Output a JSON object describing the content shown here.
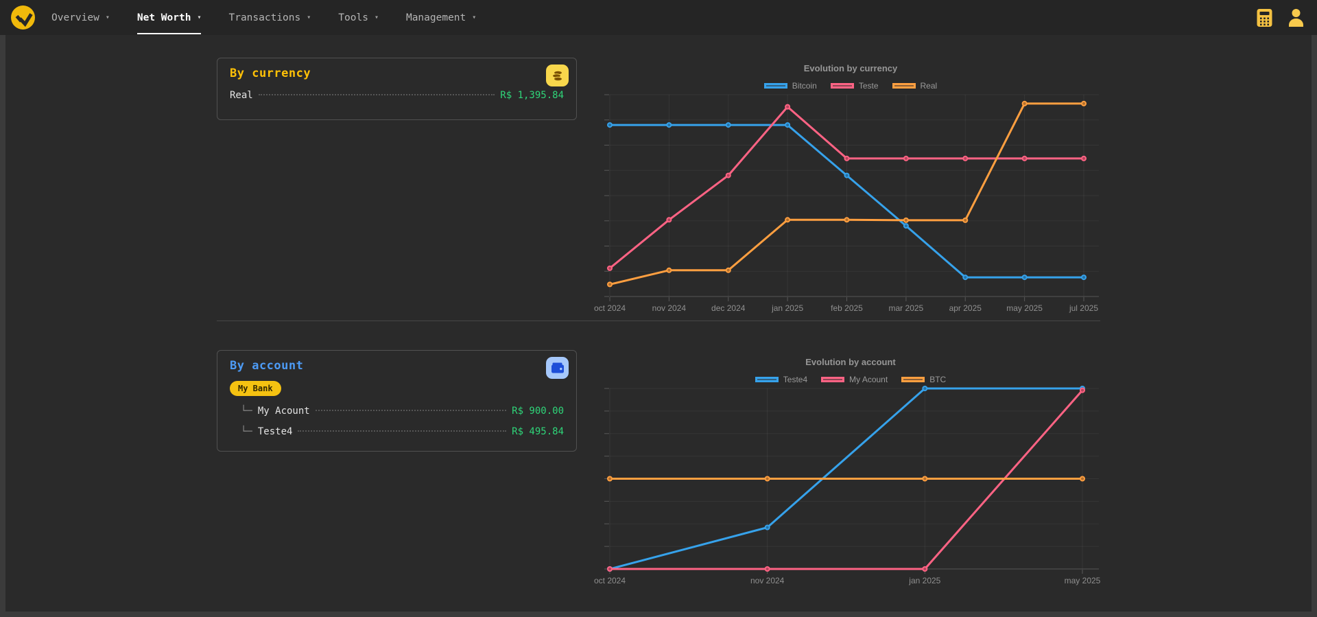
{
  "navbar": {
    "caret": "▾",
    "items": [
      {
        "label": "Overview",
        "active": false
      },
      {
        "label": "Net Worth",
        "active": true
      },
      {
        "label": "Transactions",
        "active": false
      },
      {
        "label": "Tools",
        "active": false
      },
      {
        "label": "Management",
        "active": false
      }
    ],
    "right_icons": [
      "calculator-icon",
      "user-icon"
    ],
    "logo_icon": "app-logo"
  },
  "cards": {
    "by_currency": {
      "title": "By currency",
      "icon": "coins-icon",
      "rows": [
        {
          "label": "Real",
          "value": "R$ 1,395.84"
        }
      ]
    },
    "by_account": {
      "title": "By account",
      "icon": "wallet-icon",
      "badge": "My Bank",
      "rows": [
        {
          "prefix": "└─",
          "label": "My Acount",
          "value": "R$ 900.00"
        },
        {
          "prefix": "└─",
          "label": "Teste4",
          "value": "R$ 495.84"
        }
      ]
    }
  },
  "colors": {
    "accent_yellow": "#F0B90B",
    "heading_yellow": "#FFC107",
    "heading_blue": "#4D9BF5",
    "value_green": "#2FD579",
    "chart_blue": "#36A2EB",
    "chart_pink": "#FF6384",
    "chart_orange": "#FF9F40"
  },
  "chart_data": [
    {
      "type": "line",
      "title": "Evolution by currency",
      "categories": [
        "oct 2024",
        "nov 2024",
        "dec 2024",
        "jan 2025",
        "feb 2025",
        "mar 2025",
        "apr 2025",
        "may 2025",
        "jul 2025"
      ],
      "unit": "percent_of_plot_height",
      "y_axis_note": "no y-axis tick labels visible; values estimated as % of plot height (0 = bottom, 100 = top)",
      "grid": true,
      "legend_position": "top",
      "series": [
        {
          "name": "Bitcoin",
          "color": "#36A2EB",
          "values": [
            85,
            85,
            85,
            85,
            60,
            35,
            9.5,
            9.5,
            9.5
          ]
        },
        {
          "name": "Teste",
          "color": "#FF6384",
          "values": [
            14,
            38,
            60,
            94,
            68.4,
            68.4,
            68.4,
            68.4,
            68.4
          ]
        },
        {
          "name": "Real",
          "color": "#FF9F40",
          "values": [
            6,
            13,
            13,
            38,
            38,
            37.8,
            37.8,
            95.6,
            95.6
          ]
        }
      ]
    },
    {
      "type": "line",
      "title": "Evolution by account",
      "categories": [
        "oct 2024",
        "nov 2024",
        "jan 2025",
        "may 2025"
      ],
      "unit": "percent_of_plot_height",
      "y_axis_note": "no y-axis tick labels visible; values estimated as % of plot height (0 = bottom, 100 = top)",
      "grid": true,
      "legend_position": "top",
      "series": [
        {
          "name": "Teste4",
          "color": "#36A2EB",
          "values": [
            0,
            23,
            100,
            100
          ]
        },
        {
          "name": "My Acount",
          "color": "#FF6384",
          "values": [
            0,
            0,
            0,
            99
          ]
        },
        {
          "name": "BTC",
          "color": "#FF9F40",
          "values": [
            50,
            50,
            50,
            50
          ]
        }
      ]
    }
  ]
}
